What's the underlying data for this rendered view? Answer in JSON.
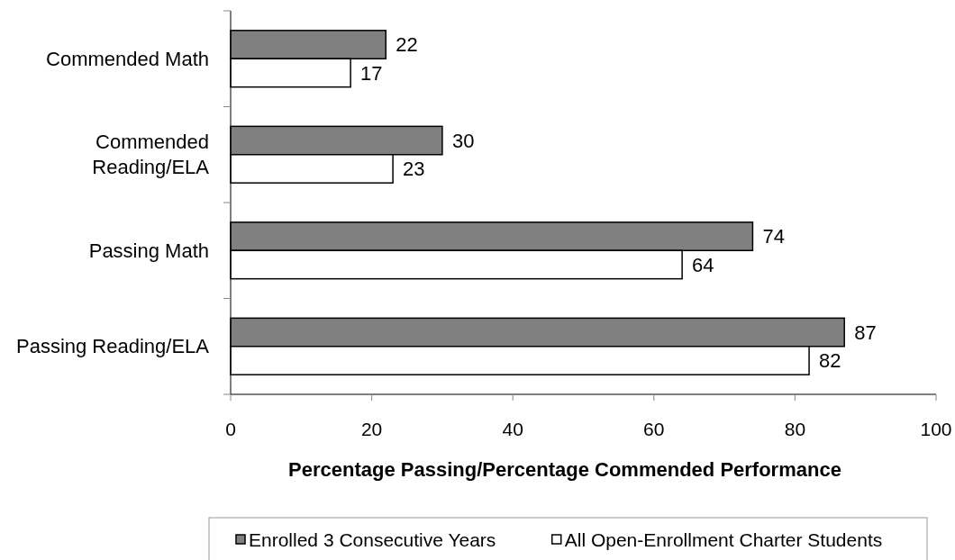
{
  "chart_data": {
    "type": "bar",
    "orientation": "horizontal",
    "categories": [
      "Commended Math",
      "Commended Reading/ELA",
      "Passing Math",
      "Passing Reading/ELA"
    ],
    "series": [
      {
        "name": "Enrolled 3 Consecutive Years",
        "color": "#808080",
        "values": [
          22,
          30,
          74,
          87
        ]
      },
      {
        "name": "All Open-Enrollment Charter Students",
        "color": "#ffffff",
        "values": [
          17,
          23,
          64,
          82
        ]
      }
    ],
    "xlabel": "Percentage Passing/Percentage Commended Performance",
    "xlim": [
      0,
      100
    ],
    "xticks": [
      0,
      20,
      40,
      60,
      80,
      100
    ],
    "data_labels": true,
    "legend": "bottom",
    "grid": false
  }
}
